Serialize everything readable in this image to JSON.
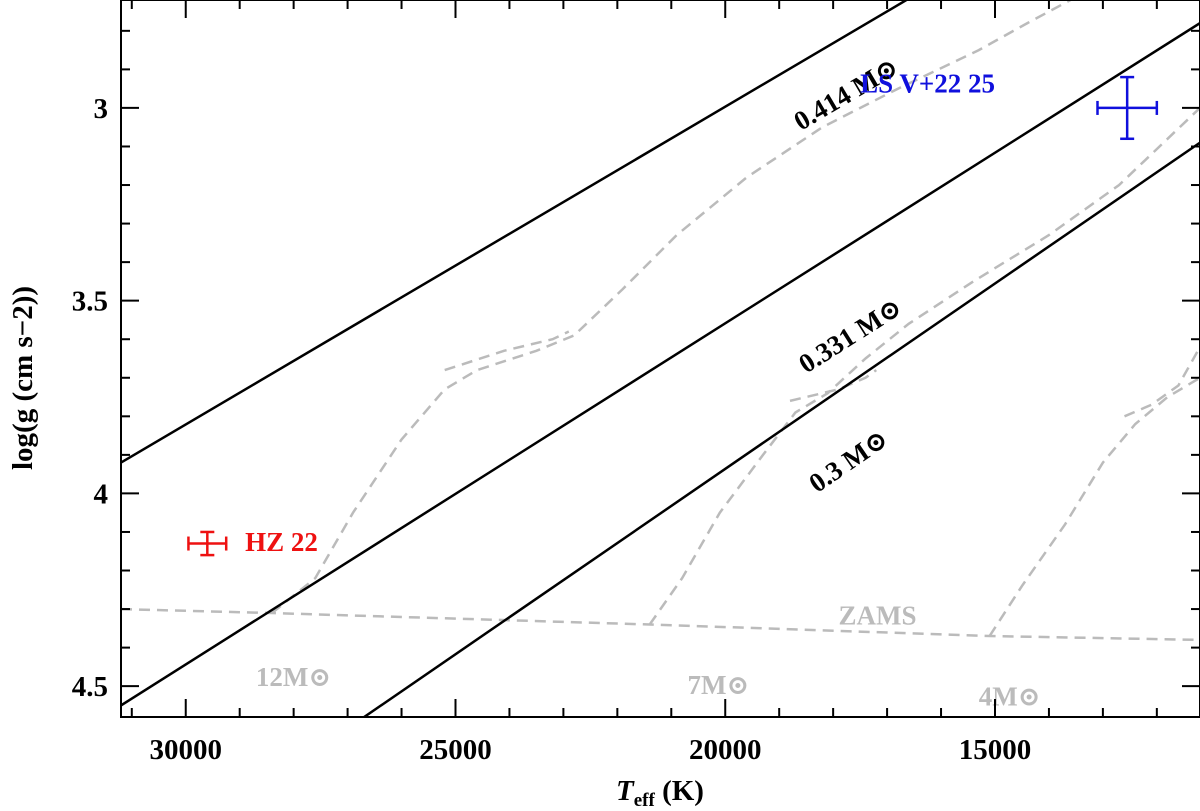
{
  "chart_data": {
    "type": "line",
    "xlabel_main": "T",
    "xlabel_sub": "eff",
    "xlabel_unit": " (K)",
    "ylabel": "log(g (cm s−2))",
    "xlim": [
      31200,
      11200
    ],
    "ylim": [
      4.58,
      2.72
    ],
    "x_ticks": [
      30000,
      25000,
      20000,
      15000
    ],
    "x_tick_labels": [
      "30000",
      "25000",
      "20000",
      "15000"
    ],
    "y_ticks": [
      3.0,
      3.5,
      4.0,
      4.5
    ],
    "y_tick_labels": [
      "3",
      "3.5",
      "4",
      "4.5"
    ],
    "colors": {
      "mass_lines": "#000000",
      "tracks": "#bbbbbb",
      "lsv": "#1010dd",
      "hz22": "#ee1111"
    },
    "mass_lines": [
      {
        "label": "0.414 M⊙",
        "points": [
          [
            31200,
            3.92
          ],
          [
            16400,
            2.7
          ]
        ],
        "label_at": [
          18600,
          3.06
        ]
      },
      {
        "label": "0.331 M⊙",
        "points": [
          [
            31200,
            4.55
          ],
          [
            11200,
            2.78
          ]
        ],
        "label_at": [
          18500,
          3.69
        ]
      },
      {
        "label": "0.3 M⊙",
        "points": [
          [
            26900,
            4.6
          ],
          [
            11200,
            3.09
          ]
        ],
        "label_at": [
          18300,
          4.0
        ]
      }
    ],
    "tracks": [
      {
        "name": "12M⊙",
        "points": [
          [
            28400,
            4.31
          ],
          [
            27600,
            4.22
          ],
          [
            26900,
            4.05
          ],
          [
            26000,
            3.86
          ],
          [
            25200,
            3.73
          ],
          [
            24600,
            3.68
          ],
          [
            23500,
            3.63
          ],
          [
            22800,
            3.59
          ],
          [
            21900,
            3.47
          ],
          [
            20900,
            3.33
          ],
          [
            19600,
            3.18
          ],
          [
            18200,
            3.05
          ],
          [
            16800,
            2.95
          ],
          [
            15300,
            2.85
          ],
          [
            14400,
            2.78
          ],
          [
            13600,
            2.72
          ]
        ]
      },
      {
        "name": "12M⊙ hook",
        "points": [
          [
            25200,
            3.68
          ],
          [
            24100,
            3.63
          ],
          [
            23200,
            3.6
          ],
          [
            22900,
            3.58
          ]
        ]
      },
      {
        "name": "7M⊙",
        "points": [
          [
            21400,
            4.34
          ],
          [
            20800,
            4.22
          ],
          [
            20100,
            4.05
          ],
          [
            19300,
            3.9
          ],
          [
            18700,
            3.79
          ],
          [
            18100,
            3.74
          ],
          [
            17400,
            3.65
          ],
          [
            16600,
            3.56
          ],
          [
            15400,
            3.45
          ],
          [
            14000,
            3.33
          ],
          [
            12700,
            3.2
          ],
          [
            11200,
            3.0
          ]
        ]
      },
      {
        "name": "7M⊙ hook",
        "points": [
          [
            18800,
            3.76
          ],
          [
            17900,
            3.73
          ],
          [
            17400,
            3.7
          ],
          [
            17200,
            3.68
          ]
        ]
      },
      {
        "name": "4M⊙",
        "points": [
          [
            15100,
            4.37
          ],
          [
            14500,
            4.24
          ],
          [
            13700,
            4.08
          ],
          [
            13000,
            3.92
          ],
          [
            12400,
            3.82
          ],
          [
            11800,
            3.75
          ],
          [
            11200,
            3.7
          ]
        ]
      },
      {
        "name": "4M⊙ hook",
        "points": [
          [
            12600,
            3.8
          ],
          [
            12100,
            3.77
          ],
          [
            11600,
            3.72
          ],
          [
            11200,
            3.62
          ]
        ]
      },
      {
        "name": "ZAMS",
        "points": [
          [
            31200,
            4.3
          ],
          [
            28500,
            4.31
          ],
          [
            21400,
            4.34
          ],
          [
            15100,
            4.37
          ],
          [
            11200,
            4.38
          ]
        ]
      }
    ],
    "track_labels": [
      {
        "label": "12M⊙",
        "at": [
          28700,
          4.5
        ]
      },
      {
        "label": "7M⊙",
        "at": [
          20700,
          4.52
        ]
      },
      {
        "label": "4M⊙",
        "at": [
          15300,
          4.55
        ]
      },
      {
        "label": "ZAMS",
        "at": [
          17900,
          4.34
        ]
      }
    ],
    "stars": [
      {
        "label": "LS V+22 25",
        "teff": 12550,
        "logg": 3.0,
        "teff_err": 550,
        "logg_err": 0.08,
        "label_at": [
          17500,
          2.96
        ],
        "color_key": "lsv"
      },
      {
        "label": "HZ 22",
        "teff": 29600,
        "logg": 4.13,
        "teff_err": 350,
        "logg_err": 0.03,
        "label_at": [
          28900,
          4.15
        ],
        "color_key": "hz22"
      }
    ]
  }
}
